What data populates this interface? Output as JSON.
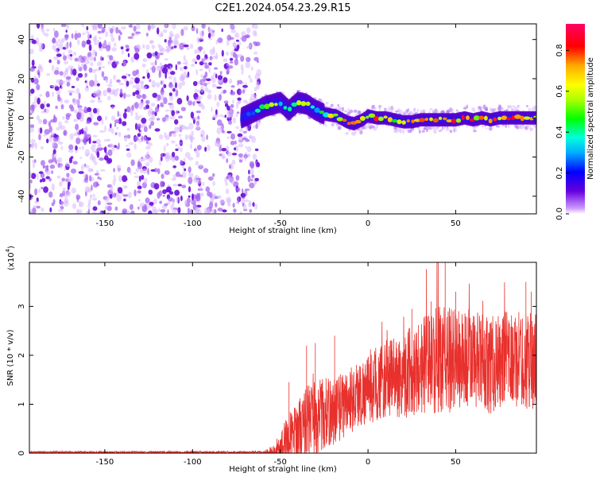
{
  "title": "C2E1.2024.054.23.29.R15",
  "chart_data": [
    {
      "type": "heatmap",
      "name": "spectrogram",
      "xlabel": "Height of straight line (km)",
      "ylabel": "Frequency (Hz)",
      "xlim": [
        -193,
        96
      ],
      "ylim": [
        -49,
        48
      ],
      "xticks": [
        -150,
        -100,
        -50,
        0,
        50
      ],
      "xtick_labels": [
        "-150",
        "-100",
        "-50",
        "0",
        "50"
      ],
      "yticks": [
        -40,
        -20,
        0,
        20,
        40
      ],
      "ytick_labels": [
        "-40",
        "-20",
        "0",
        "20",
        "40"
      ],
      "colorbar": {
        "label": "Normalized spectral amplitude",
        "range": [
          0,
          0.93
        ],
        "ticks": [
          0.0,
          0.2,
          0.4,
          0.6,
          0.8
        ],
        "tick_labels": [
          "0.0",
          "0.2",
          "0.4",
          "0.6",
          "0.8"
        ],
        "colormap": "rainbow"
      },
      "noise_region_x": [
        -193,
        -66
      ],
      "signal_track": [
        {
          "x": -72,
          "f": 0,
          "amp": 0.25
        },
        {
          "x": -65,
          "f": 3,
          "amp": 0.35
        },
        {
          "x": -58,
          "f": 6,
          "amp": 0.45
        },
        {
          "x": -50,
          "f": 8,
          "amp": 0.55
        },
        {
          "x": -45,
          "f": 4,
          "amp": 0.45
        },
        {
          "x": -40,
          "f": 8,
          "amp": 0.5
        },
        {
          "x": -35,
          "f": 7,
          "amp": 0.5
        },
        {
          "x": -30,
          "f": 4,
          "amp": 0.45
        },
        {
          "x": -25,
          "f": 2,
          "amp": 0.5
        },
        {
          "x": -18,
          "f": 1,
          "amp": 0.7
        },
        {
          "x": -12,
          "f": -2,
          "amp": 0.8
        },
        {
          "x": -8,
          "f": -3,
          "amp": 0.75
        },
        {
          "x": -3,
          "f": -1,
          "amp": 0.65
        },
        {
          "x": 0,
          "f": 1,
          "amp": 0.6
        },
        {
          "x": 5,
          "f": 0,
          "amp": 0.8
        },
        {
          "x": 10,
          "f": 0,
          "amp": 0.8
        },
        {
          "x": 15,
          "f": -1,
          "amp": 0.7
        },
        {
          "x": 20,
          "f": -2,
          "amp": 0.75
        },
        {
          "x": 25,
          "f": -2,
          "amp": 0.7
        },
        {
          "x": 30,
          "f": -1,
          "amp": 0.75
        },
        {
          "x": 35,
          "f": -1,
          "amp": 0.7
        },
        {
          "x": 40,
          "f": -1,
          "amp": 0.8
        },
        {
          "x": 45,
          "f": -1,
          "amp": 0.7
        },
        {
          "x": 50,
          "f": -1,
          "amp": 0.8
        },
        {
          "x": 55,
          "f": 0,
          "amp": 0.75
        },
        {
          "x": 60,
          "f": -1,
          "amp": 0.8
        },
        {
          "x": 65,
          "f": 0,
          "amp": 0.75
        },
        {
          "x": 70,
          "f": -1,
          "amp": 0.85
        },
        {
          "x": 75,
          "f": 0,
          "amp": 0.85
        },
        {
          "x": 80,
          "f": 0,
          "amp": 0.85
        },
        {
          "x": 85,
          "f": 0,
          "amp": 0.8
        },
        {
          "x": 90,
          "f": 0,
          "amp": 0.85
        },
        {
          "x": 95,
          "f": 0,
          "amp": 0.8
        }
      ]
    },
    {
      "type": "line",
      "name": "snr",
      "xlabel": "Height of straight line (km)",
      "ylabel": "SNR (10 * v/v)",
      "scale_label": "(x10",
      "scale_exponent": "4",
      "scale_close": ")",
      "xlim": [
        -193,
        96
      ],
      "ylim": [
        0,
        3.9
      ],
      "xticks": [
        -150,
        -100,
        -50,
        0,
        50
      ],
      "xtick_labels": [
        "-150",
        "-100",
        "-50",
        "0",
        "50"
      ],
      "yticks": [
        0,
        1,
        2,
        3
      ],
      "ytick_labels": [
        "0",
        "1",
        "2",
        "3"
      ],
      "color": "#e8302c",
      "envelope": {
        "x": [
          -193,
          -60,
          -52,
          -47,
          -40,
          -35,
          -30,
          -20,
          -10,
          0,
          10,
          20,
          30,
          40,
          50,
          60,
          70,
          80,
          90,
          96
        ],
        "baseline": [
          0.02,
          0.02,
          0.05,
          0.2,
          0.4,
          0.6,
          0.75,
          0.85,
          1.1,
          1.3,
          1.5,
          1.6,
          1.8,
          1.9,
          1.9,
          1.9,
          1.8,
          1.9,
          1.9,
          1.9
        ],
        "spread": [
          0.02,
          0.02,
          0.15,
          0.5,
          0.7,
          0.8,
          0.8,
          0.7,
          0.7,
          0.7,
          0.8,
          0.9,
          1.0,
          1.1,
          1.1,
          1.0,
          1.0,
          1.0,
          1.0,
          1.0
        ]
      },
      "peaks": [
        {
          "x": -45,
          "y": 1.45
        },
        {
          "x": -35,
          "y": 2.2
        },
        {
          "x": -30,
          "y": 2.25
        },
        {
          "x": -19,
          "y": 2.4
        },
        {
          "x": -10,
          "y": 1.6
        },
        {
          "x": 25,
          "y": 2.95
        },
        {
          "x": 36,
          "y": 3.1
        },
        {
          "x": 40,
          "y": 3.9
        },
        {
          "x": 44,
          "y": 3.9
        },
        {
          "x": 50,
          "y": 3.3
        },
        {
          "x": 68,
          "y": 2.7
        },
        {
          "x": 78,
          "y": 2.9
        },
        {
          "x": 90,
          "y": 3.5
        },
        {
          "x": 93,
          "y": 3.3
        }
      ]
    }
  ]
}
